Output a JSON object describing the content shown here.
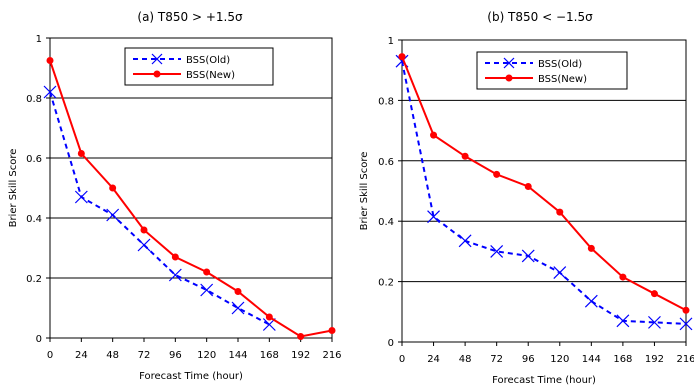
{
  "chart_data": [
    {
      "type": "line",
      "title": "(a)  T850 > +1.5σ",
      "xlabel": "Forecast Time (hour)",
      "ylabel": "Brier Skill Score",
      "x": [
        0,
        24,
        48,
        72,
        96,
        120,
        144,
        168,
        192,
        216
      ],
      "xlim": [
        0,
        216
      ],
      "ylim": [
        0,
        1
      ],
      "yticks": [
        "0",
        "0.2",
        "0.4",
        "0.6",
        "0.8",
        "1"
      ],
      "grid": "horizontal",
      "legend": "top-right",
      "series": [
        {
          "name": "BSS(Old)",
          "color": "#0000ff",
          "style": "dashed",
          "marker": "x",
          "values": [
            0.82,
            0.47,
            0.41,
            0.31,
            0.21,
            0.16,
            0.1,
            0.045,
            null,
            null
          ]
        },
        {
          "name": "BSS(New)",
          "color": "#ff0000",
          "style": "solid",
          "marker": "circle",
          "values": [
            0.925,
            0.615,
            0.5,
            0.36,
            0.27,
            0.22,
            0.155,
            0.07,
            0.005,
            0.025
          ]
        }
      ]
    },
    {
      "type": "line",
      "title": "(b)  T850 < −1.5σ",
      "xlabel": "Forecast Time (hour)",
      "ylabel": "Brier Skill Score",
      "x": [
        0,
        24,
        48,
        72,
        96,
        120,
        144,
        168,
        192,
        216
      ],
      "xlim": [
        0,
        216
      ],
      "ylim": [
        0,
        1
      ],
      "yticks": [
        "0",
        "0.2",
        "0.4",
        "0.6",
        "0.8",
        "1"
      ],
      "grid": "horizontal",
      "legend": "top-right",
      "series": [
        {
          "name": "BSS(Old)",
          "color": "#0000ff",
          "style": "dashed",
          "marker": "x",
          "values": [
            0.93,
            0.415,
            0.335,
            0.3,
            0.285,
            0.23,
            0.135,
            0.07,
            0.065,
            0.06
          ]
        },
        {
          "name": "BSS(New)",
          "color": "#ff0000",
          "style": "solid",
          "marker": "circle",
          "values": [
            0.945,
            0.685,
            0.615,
            0.555,
            0.515,
            0.43,
            0.31,
            0.215,
            0.16,
            0.105
          ]
        }
      ]
    }
  ]
}
